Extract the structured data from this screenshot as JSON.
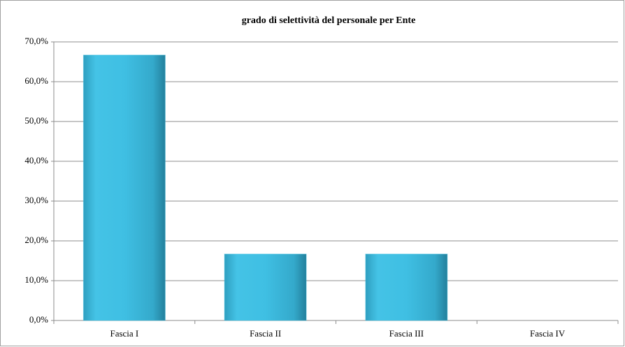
{
  "chart_data": {
    "type": "bar",
    "title": "grado di selettività del personale per Ente",
    "categories": [
      "Fascia I",
      "Fascia II",
      "Fascia III",
      "Fascia IV"
    ],
    "values": [
      66.7,
      16.7,
      16.7,
      0
    ],
    "color": "#3cbde0",
    "ylim": [
      0,
      70
    ],
    "yticks": [
      {
        "value": 0,
        "label": "0,0%"
      },
      {
        "value": 10,
        "label": "10,0%"
      },
      {
        "value": 20,
        "label": "20,0%"
      },
      {
        "value": 30,
        "label": "30,0%"
      },
      {
        "value": 40,
        "label": "40,0%"
      },
      {
        "value": 50,
        "label": "50,0%"
      },
      {
        "value": 60,
        "label": "60,0%"
      },
      {
        "value": 70,
        "label": "70,0%"
      }
    ],
    "grid": true
  }
}
